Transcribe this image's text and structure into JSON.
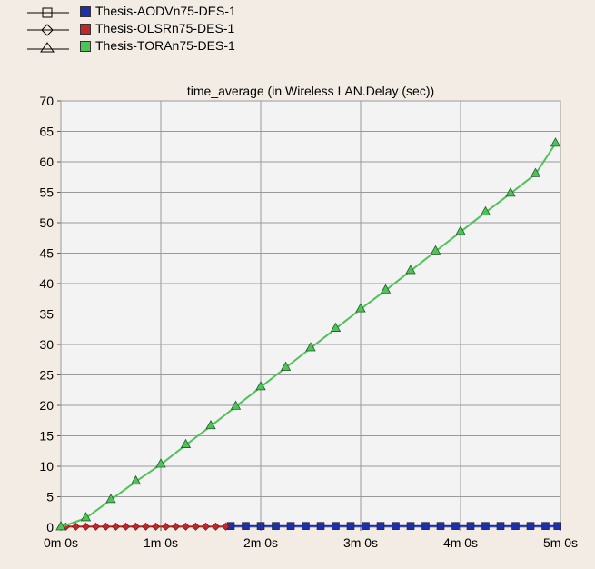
{
  "chart_data": {
    "type": "line",
    "title": "time_average (in Wireless LAN.Delay (sec))",
    "xlabel": "",
    "ylabel": "",
    "x_ticks": [
      "0m 0s",
      "1m 0s",
      "2m 0s",
      "3m 0s",
      "4m 0s",
      "5m 0s"
    ],
    "xlim": [
      0,
      5
    ],
    "ylim": [
      0,
      70
    ],
    "y_ticks": [
      0,
      5,
      10,
      15,
      20,
      25,
      30,
      35,
      40,
      45,
      50,
      55,
      60,
      65,
      70
    ],
    "grid": true,
    "legend_position": "top-left",
    "series": [
      {
        "name": "Thesis-AODVn75-DES-1",
        "color": "#1f2fa8",
        "marker": "square",
        "x": [
          1.7,
          1.85,
          2.0,
          2.15,
          2.3,
          2.45,
          2.6,
          2.75,
          2.9,
          3.05,
          3.2,
          3.35,
          3.5,
          3.65,
          3.8,
          3.95,
          4.1,
          4.25,
          4.4,
          4.55,
          4.7,
          4.85,
          4.97
        ],
        "y": [
          0.2,
          0.2,
          0.2,
          0.2,
          0.2,
          0.2,
          0.2,
          0.2,
          0.2,
          0.2,
          0.2,
          0.2,
          0.2,
          0.2,
          0.2,
          0.2,
          0.2,
          0.2,
          0.2,
          0.2,
          0.2,
          0.2,
          0.2
        ]
      },
      {
        "name": "Thesis-OLSRn75-DES-1",
        "color": "#c0282a",
        "marker": "diamond",
        "x": [
          0.05,
          0.15,
          0.25,
          0.35,
          0.45,
          0.55,
          0.65,
          0.75,
          0.85,
          0.95,
          1.05,
          1.15,
          1.25,
          1.35,
          1.45,
          1.55,
          1.65
        ],
        "y": [
          0.1,
          0.1,
          0.1,
          0.1,
          0.1,
          0.1,
          0.1,
          0.1,
          0.1,
          0.1,
          0.1,
          0.1,
          0.1,
          0.1,
          0.1,
          0.1,
          0.1
        ]
      },
      {
        "name": "Thesis-TORAn75-DES-1",
        "color": "#4fc25a",
        "marker": "triangle",
        "x": [
          0.0,
          0.25,
          0.5,
          0.75,
          1.0,
          1.25,
          1.5,
          1.75,
          2.0,
          2.25,
          2.5,
          2.75,
          3.0,
          3.25,
          3.5,
          3.75,
          4.0,
          4.25,
          4.5,
          4.75,
          4.95
        ],
        "y": [
          0.0,
          1.5,
          4.5,
          7.5,
          10.3,
          13.5,
          16.6,
          19.8,
          23.0,
          26.2,
          29.4,
          32.6,
          35.8,
          38.9,
          42.1,
          45.3,
          48.5,
          51.7,
          54.8,
          58.0,
          63.0
        ]
      }
    ]
  }
}
